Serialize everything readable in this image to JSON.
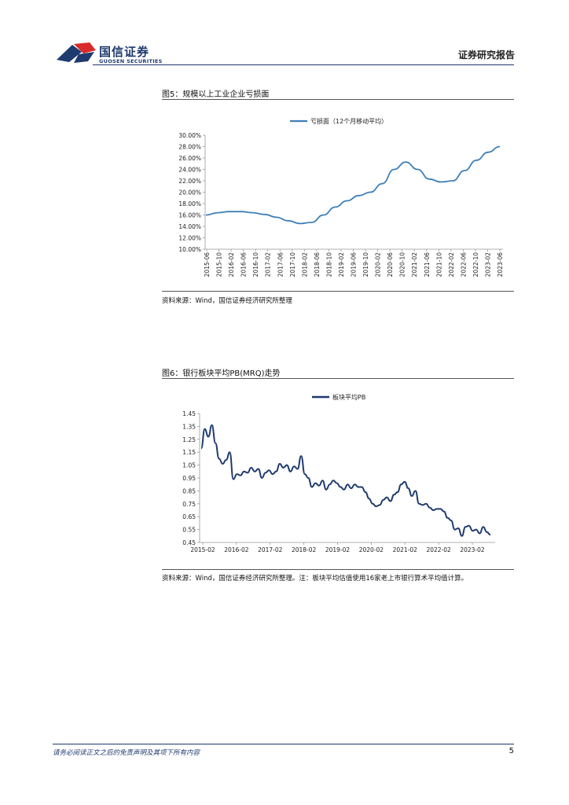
{
  "header": {
    "brand_cn": "国信证券",
    "brand_en": "GUOSEN SECURITIES",
    "report_type": "证券研究报告",
    "logo_icon": "guosen-logo-icon",
    "brand_color": "#1f3a6e",
    "logo_red": "#d92a2a"
  },
  "figure5": {
    "title": "图5：规模以上工业企业亏损面",
    "source": "资料来源：Wind，国信证券经济研究所整理"
  },
  "figure6": {
    "title": "图6：银行板块平均PB(MRQ)走势",
    "source": "资料来源：Wind，国信证券经济研究所整理。注：板块平均估值使用16家老上市银行算术平均值计算。"
  },
  "footer": {
    "note": "请务必阅读正文之后的免责声明及其项下所有内容",
    "page": "5"
  },
  "chart_data": [
    {
      "type": "line",
      "legend_position": "top-center",
      "grid": false,
      "ylim": [
        0.1,
        0.3
      ],
      "y_ticks": [
        "30.00%",
        "28.00%",
        "26.00%",
        "24.00%",
        "22.00%",
        "20.00%",
        "18.00%",
        "16.00%",
        "14.00%",
        "12.00%",
        "10.00%"
      ],
      "x_ticks": [
        "2015-06",
        "2015-10",
        "2016-02",
        "2016-06",
        "2016-10",
        "2017-02",
        "2017-06",
        "2017-10",
        "2018-02",
        "2018-06",
        "2018-10",
        "2019-02",
        "2019-06",
        "2019-10",
        "2020-02",
        "2020-06",
        "2020-10",
        "2021-02",
        "2021-06",
        "2021-10",
        "2022-02",
        "2022-06",
        "2022-10",
        "2023-02",
        "2023-06"
      ],
      "series": [
        {
          "name": "亏损面（12个月移动平均）",
          "color": "#3f7fb7",
          "values": [
            0.16,
            0.164,
            0.166,
            0.166,
            0.164,
            0.161,
            0.156,
            0.15,
            0.145,
            0.147,
            0.16,
            0.174,
            0.185,
            0.194,
            0.2,
            0.215,
            0.24,
            0.253,
            0.24,
            0.223,
            0.218,
            0.22,
            0.238,
            0.256,
            0.27,
            0.28
          ]
        }
      ]
    },
    {
      "type": "line",
      "legend_position": "top-center",
      "grid": false,
      "ylim": [
        0.45,
        1.45
      ],
      "y_ticks": [
        "1.45",
        "1.35",
        "1.25",
        "1.15",
        "1.05",
        "0.95",
        "0.85",
        "0.75",
        "0.65",
        "0.55",
        "0.45"
      ],
      "x_ticks": [
        "2015-02",
        "2016-02",
        "2017-02",
        "2018-02",
        "2019-02",
        "2020-02",
        "2021-02",
        "2022-02",
        "2023-02"
      ],
      "series": [
        {
          "name": "板块平均PB",
          "color": "#1f3a6e",
          "values": [
            1.18,
            1.33,
            1.27,
            1.36,
            1.22,
            1.1,
            1.06,
            1.09,
            1.15,
            0.94,
            0.98,
            0.97,
            1.0,
            0.99,
            1.03,
            1.0,
            1.02,
            0.95,
            0.99,
            1.01,
            0.98,
            1.0,
            1.06,
            1.03,
            1.05,
            1.0,
            1.04,
            1.02,
            1.12,
            0.98,
            0.95,
            0.88,
            0.91,
            0.89,
            0.93,
            0.86,
            0.9,
            0.93,
            0.91,
            0.88,
            0.86,
            0.9,
            0.87,
            0.9,
            0.88,
            0.88,
            0.84,
            0.79,
            0.75,
            0.73,
            0.74,
            0.78,
            0.8,
            0.77,
            0.82,
            0.84,
            0.9,
            0.92,
            0.87,
            0.81,
            0.85,
            0.75,
            0.74,
            0.75,
            0.72,
            0.7,
            0.71,
            0.71,
            0.69,
            0.64,
            0.62,
            0.55,
            0.56,
            0.5,
            0.57,
            0.58,
            0.54,
            0.55,
            0.52,
            0.57,
            0.53,
            0.51
          ]
        }
      ]
    }
  ]
}
